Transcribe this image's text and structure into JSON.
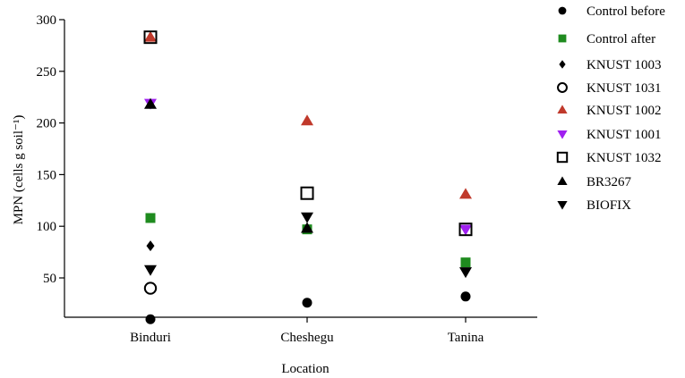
{
  "chart_data": {
    "type": "scatter",
    "title": "",
    "xlabel": "Location",
    "ylabel": "MPN (cells g soil⁻¹)",
    "ylim": [
      0,
      300
    ],
    "ytick_values": [
      50,
      100,
      150,
      200,
      250,
      300
    ],
    "ytick_labels": [
      "50",
      "100",
      "150",
      "200",
      "250",
      "300"
    ],
    "categories": [
      "Binduri",
      "Cheshegu",
      "Tanina"
    ],
    "legend_position": "right",
    "series": [
      {
        "name": "Control before",
        "marker": "circle-filled",
        "color": "#000000",
        "values": [
          10,
          26,
          32
        ]
      },
      {
        "name": "Control after",
        "marker": "square-filled",
        "color": "#1f8b1f",
        "values": [
          108,
          97,
          65
        ]
      },
      {
        "name": "KNUST 1003",
        "marker": "diamond-filled",
        "color": "#000000",
        "values": [
          81,
          null,
          null
        ]
      },
      {
        "name": "KNUST 1031",
        "marker": "circle-open",
        "color": "#000000",
        "values": [
          40,
          null,
          null
        ]
      },
      {
        "name": "KNUST 1002",
        "marker": "triangle-up-filled",
        "color": "#c0392b",
        "values": [
          283,
          202,
          131
        ]
      },
      {
        "name": "KNUST 1001",
        "marker": "triangle-down-filled",
        "color": "#a020f0",
        "values": [
          219,
          null,
          97
        ]
      },
      {
        "name": "KNUST 1032",
        "marker": "square-open",
        "color": "#000000",
        "values": [
          283,
          132,
          97
        ]
      },
      {
        "name": "BR3267",
        "marker": "triangle-up-filled",
        "color": "#000000",
        "values": [
          218,
          98,
          null
        ]
      },
      {
        "name": "BIOFIX",
        "marker": "triangle-down-filled",
        "color": "#000000",
        "values": [
          58,
          109,
          56
        ]
      }
    ]
  }
}
